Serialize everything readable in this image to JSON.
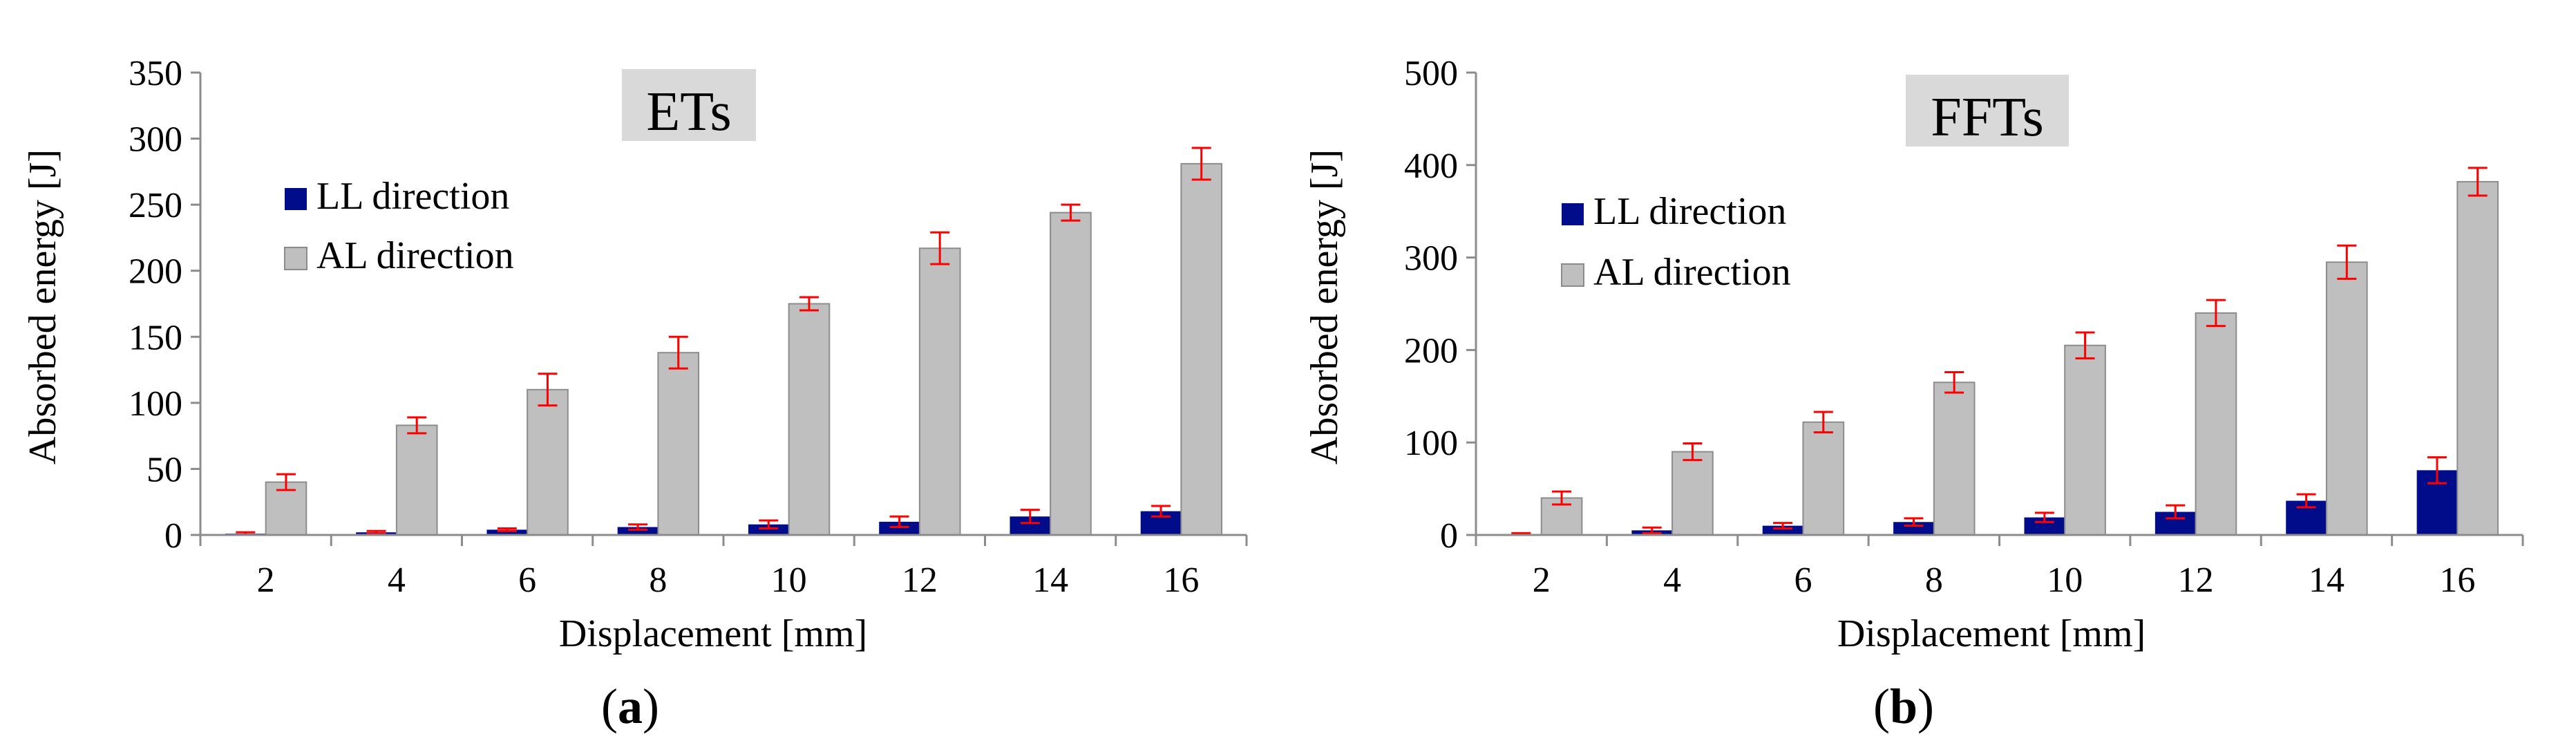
{
  "chart_data": [
    {
      "type": "bar",
      "panel_label": "a",
      "title": "ETs",
      "xlabel": "Displacement [mm]",
      "ylabel": "Absorbed energy [J]",
      "ylim": [
        0,
        350
      ],
      "yticks": [
        "0",
        "50",
        "100",
        "150",
        "200",
        "250",
        "300",
        "350"
      ],
      "categories": [
        "2",
        "4",
        "6",
        "8",
        "10",
        "12",
        "14",
        "16"
      ],
      "legend_position": "upper-left",
      "grid": false,
      "series": [
        {
          "name": "LL direction",
          "color": "#000c8a",
          "values": [
            1,
            2,
            4,
            6,
            8,
            10,
            14,
            18
          ],
          "errors": [
            1,
            1,
            1,
            2,
            3,
            4,
            5,
            4
          ]
        },
        {
          "name": "AL direction",
          "color": "#bfbfbf",
          "values": [
            40,
            83,
            110,
            138,
            175,
            217,
            244,
            281
          ],
          "errors": [
            6,
            6,
            12,
            12,
            5,
            12,
            6,
            12
          ]
        }
      ],
      "error_bar_color": "#ff0000"
    },
    {
      "type": "bar",
      "panel_label": "b",
      "title": "FFTs",
      "xlabel": "Displacement [mm]",
      "ylabel": "Absorbed energy [J]",
      "ylim": [
        0,
        500
      ],
      "yticks": [
        "0",
        "100",
        "200",
        "300",
        "400",
        "500"
      ],
      "categories": [
        "2",
        "4",
        "6",
        "8",
        "10",
        "12",
        "14",
        "16"
      ],
      "legend_position": "upper-left",
      "grid": false,
      "series": [
        {
          "name": "LL direction",
          "color": "#000c8a",
          "values": [
            1,
            5,
            10,
            14,
            19,
            25,
            37,
            70
          ],
          "errors": [
            1,
            3,
            3,
            4,
            5,
            7,
            7,
            14
          ]
        },
        {
          "name": "AL direction",
          "color": "#bfbfbf",
          "values": [
            40,
            90,
            122,
            165,
            205,
            240,
            295,
            382
          ],
          "errors": [
            7,
            9,
            11,
            11,
            14,
            14,
            18,
            15
          ]
        }
      ],
      "error_bar_color": "#ff0000"
    }
  ]
}
